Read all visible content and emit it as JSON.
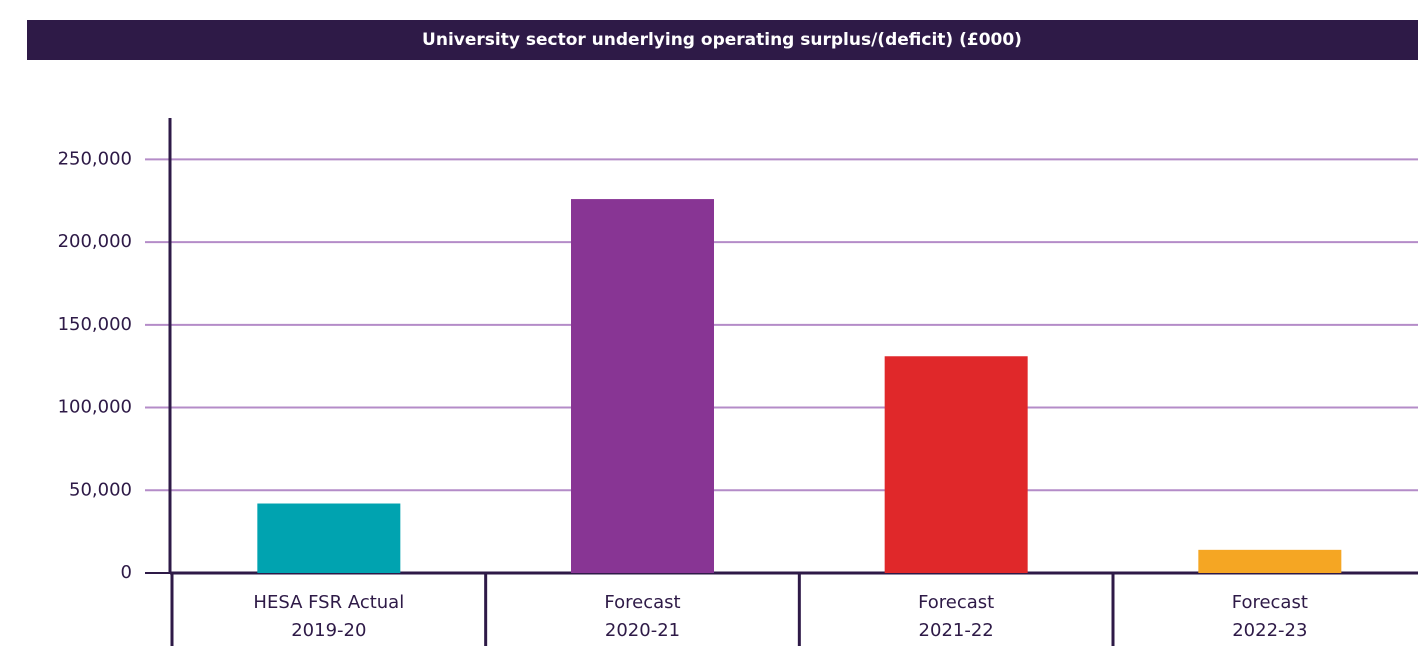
{
  "chart_data": {
    "type": "bar",
    "title": "University sector underlying operating surplus/(deficit) (£000)",
    "categories": [
      [
        "HESA FSR Actual",
        "2019-20"
      ],
      [
        "Forecast",
        "2020-21"
      ],
      [
        "Forecast",
        "2021-22"
      ],
      [
        "Forecast",
        "2022-23"
      ]
    ],
    "values": [
      42000,
      226000,
      131000,
      14000
    ],
    "colors": [
      "#00a3b0",
      "#883594",
      "#e0282a",
      "#f5a623"
    ],
    "ylim": [
      0,
      275000
    ],
    "yticks": [
      0,
      {
        "value": 50000,
        "label": "50,000"
      },
      {
        "value": 100000,
        "label": "100,000"
      },
      {
        "value": 150000,
        "label": "150,000"
      },
      {
        "value": 200000,
        "label": "200,000"
      },
      {
        "value": 250000,
        "label": "250,000"
      }
    ],
    "grid": true
  }
}
